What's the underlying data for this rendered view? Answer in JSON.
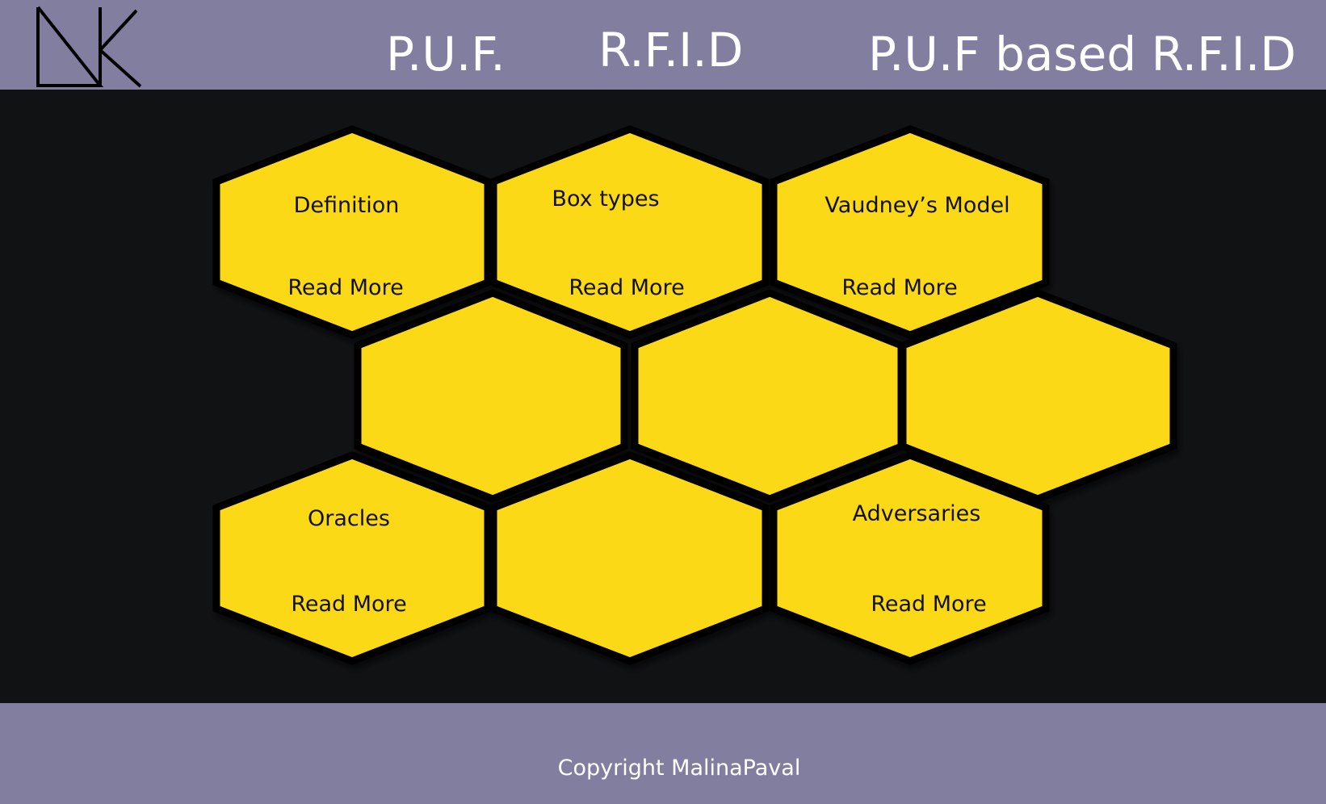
{
  "header": {
    "logo": "DK",
    "nav": {
      "puf": "P.U.F.",
      "rfid": "R.F.I.D",
      "puf_rfid": "P.U.F based R.F.I.D"
    }
  },
  "honeycomb": {
    "fill_color": "#fcd912",
    "border_color": "#000000",
    "cells": [
      {
        "title": "Definition",
        "read_more": "Read More"
      },
      {
        "title": "Box types",
        "read_more": "Read More"
      },
      {
        "title": "Vaudney’s Model",
        "read_more": "Read More"
      },
      {
        "title": "Oracles",
        "read_more": "Read More"
      },
      {
        "title": "Adversaries",
        "read_more": "Read More"
      }
    ]
  },
  "footer": {
    "copyright": "Copyright MalinaPaval"
  },
  "colors": {
    "header_bg": "#817e9f",
    "main_bg": "#111214",
    "hex_fill": "#fcd912",
    "text_light": "#ffffff"
  }
}
